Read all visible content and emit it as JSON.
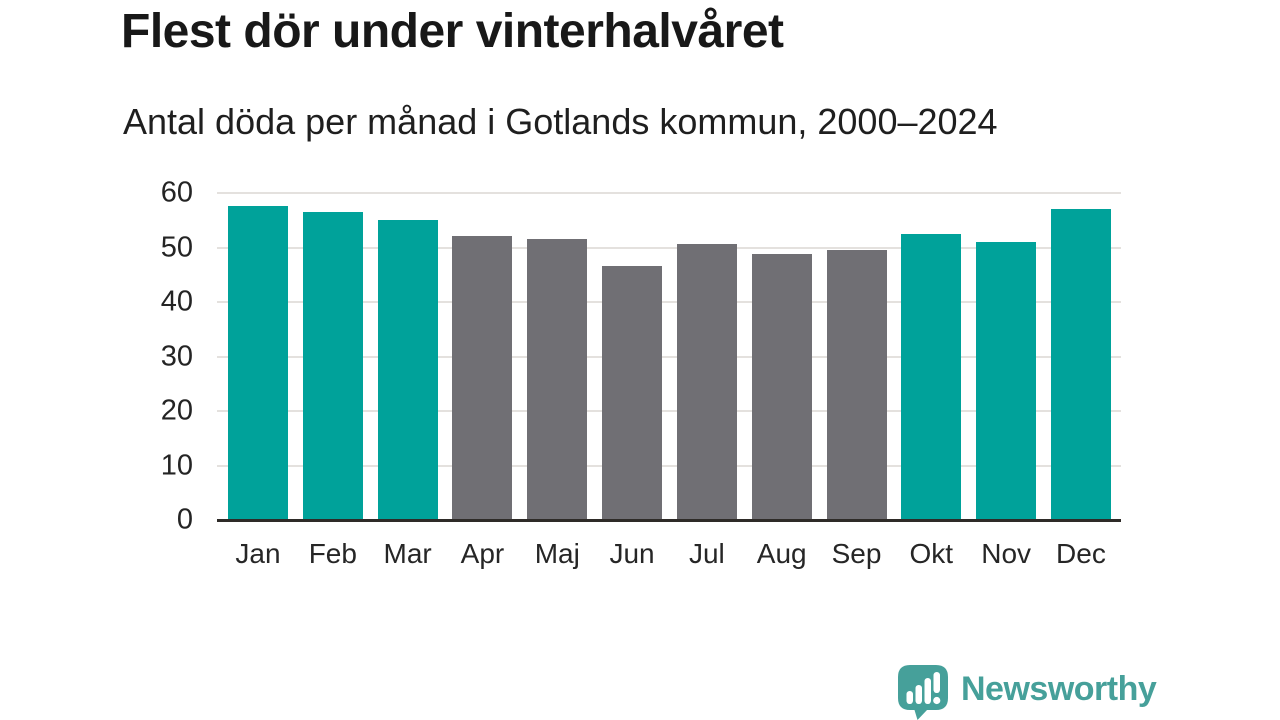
{
  "header": {
    "title": "Flest dör under vinterhalvåret",
    "subtitle": "Antal döda per månad i Gotlands kommun, 2000–2024"
  },
  "chart_data": {
    "type": "bar",
    "title": "Flest dör under vinterhalvåret",
    "subtitle": "Antal döda per månad i Gotlands kommun, 2000–2024",
    "categories": [
      "Jan",
      "Feb",
      "Mar",
      "Apr",
      "Maj",
      "Jun",
      "Jul",
      "Aug",
      "Sep",
      "Okt",
      "Nov",
      "Dec"
    ],
    "values": [
      57.7,
      56.6,
      55.0,
      52.2,
      51.5,
      46.6,
      50.7,
      48.9,
      49.6,
      52.4,
      51.0,
      57.1
    ],
    "groups": [
      "winter",
      "winter",
      "winter",
      "summer",
      "summer",
      "summer",
      "summer",
      "summer",
      "summer",
      "winter",
      "winter",
      "winter"
    ],
    "group_colors": {
      "winter": "#00a29a",
      "summer": "#706f74"
    },
    "xlabel": "",
    "ylabel": "",
    "ylim": [
      0,
      60
    ],
    "yticks": [
      0,
      10,
      20,
      30,
      40,
      50,
      60
    ],
    "grid": "horizontal-only",
    "legend_position": "none"
  },
  "footer": {
    "brand_label": "Newsworthy",
    "brand_color": "#46a09a",
    "logo_icon": "newsworthy-speech-bubble-bar-chart-icon"
  },
  "style": {
    "background": "#ffffff",
    "bar_teal": "#00a29a",
    "bar_gray": "#706f74",
    "gridline_color": "#e4e1de",
    "axis_line_color": "#2e2b28",
    "title_color": "#181818",
    "label_color": "#242424"
  }
}
